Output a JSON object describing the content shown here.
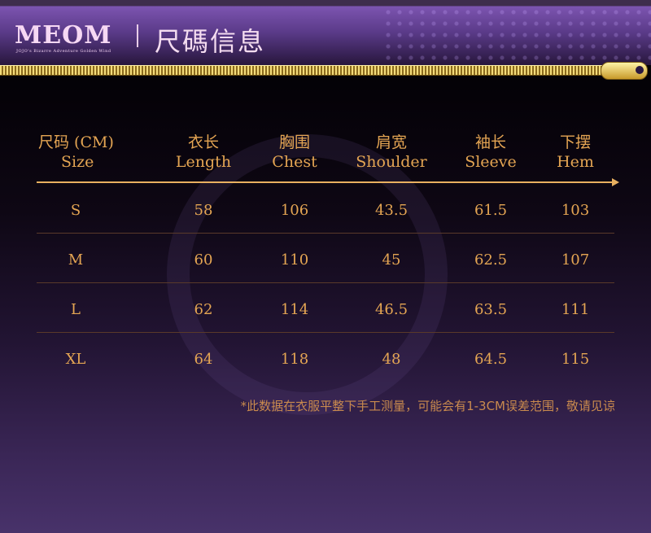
{
  "header": {
    "logo": "MEOM",
    "logo_sub": "JOJO's Bizarre Adventure Golden Wind",
    "title": "尺碼信息"
  },
  "table": {
    "columns": [
      {
        "zh": "尺码 (CM)",
        "en": "Size"
      },
      {
        "zh": "衣长",
        "en": "Length"
      },
      {
        "zh": "胸围",
        "en": "Chest"
      },
      {
        "zh": "肩宽",
        "en": "Shoulder"
      },
      {
        "zh": "袖长",
        "en": "Sleeve"
      },
      {
        "zh": "下摆",
        "en": "Hem"
      }
    ],
    "rows": [
      [
        "S",
        "58",
        "106",
        "43.5",
        "61.5",
        "103"
      ],
      [
        "M",
        "60",
        "110",
        "45",
        "62.5",
        "107"
      ],
      [
        "L",
        "62",
        "114",
        "46.5",
        "63.5",
        "111"
      ],
      [
        "XL",
        "64",
        "118",
        "48",
        "64.5",
        "115"
      ]
    ]
  },
  "note": "*此数据在衣服平整下手工测量，可能会有1-3CM误差范围，敬请见谅",
  "colors": {
    "text": "#e4a553",
    "accent_purple": "#7c54b0",
    "gold": "#f4dc7a"
  }
}
